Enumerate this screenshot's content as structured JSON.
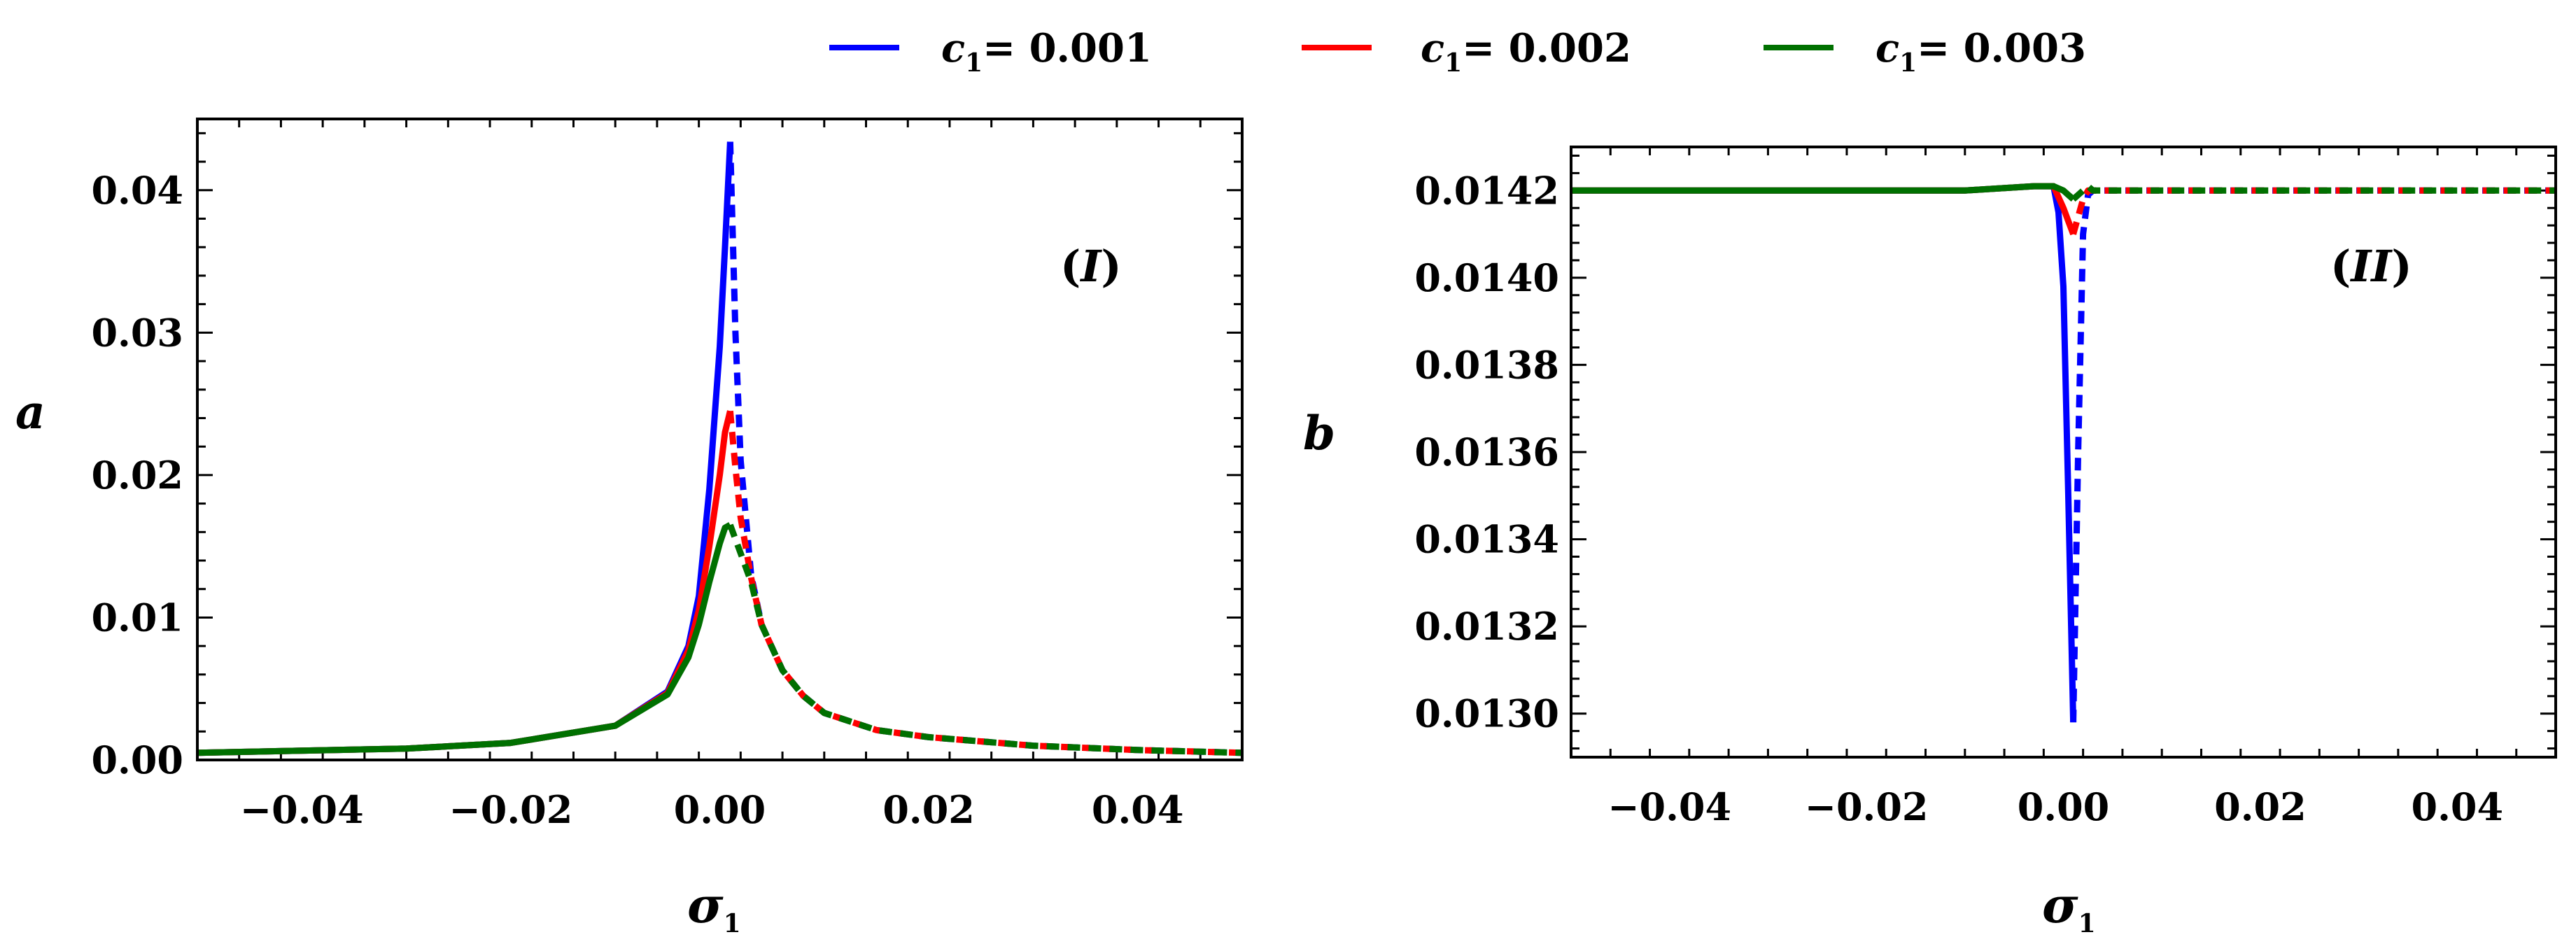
{
  "legend": [
    {
      "sym": "c",
      "sub": "1",
      "text": "= 0.001",
      "color": "#0000ff"
    },
    {
      "sym": "c",
      "sub": "1",
      "text": "= 0.002",
      "color": "#ff0000"
    },
    {
      "sym": "c",
      "sub": "1",
      "text": "= 0.003",
      "color": "#007000"
    }
  ],
  "chart_data": [
    {
      "type": "line",
      "panel_label": {
        "open": "(",
        "italic": "I",
        "close": ")"
      },
      "ylabel": "a",
      "xlabel": {
        "sym": "σ",
        "sub": "1"
      },
      "xlim": [
        -0.05,
        0.05
      ],
      "ylim": [
        0,
        0.045
      ],
      "xticks": [
        -0.04,
        -0.02,
        0.0,
        0.02,
        0.04
      ],
      "xtick_labels": [
        "−0.04",
        "−0.02",
        "0.00",
        "0.02",
        "0.04"
      ],
      "yticks": [
        0,
        0.01,
        0.02,
        0.03,
        0.04
      ],
      "ytick_labels": [
        "0.00",
        "0.01",
        "0.02",
        "0.03",
        "0.04"
      ],
      "series": [
        {
          "legend_index": 0,
          "color": "#0000ff",
          "solid": {
            "x": [
              -0.05,
              -0.03,
              -0.02,
              -0.01,
              -0.005,
              -0.003,
              -0.002,
              -0.001,
              0,
              0.0005,
              0.001
            ],
            "y": [
              0.0005,
              0.0008,
              0.0012,
              0.0024,
              0.0048,
              0.008,
              0.0115,
              0.019,
              0.029,
              0.036,
              0.0434
            ]
          },
          "dashed": {
            "x": [
              0.001,
              0.0015,
              0.002,
              0.003,
              0.004,
              0.006,
              0.008,
              0.01,
              0.015,
              0.02,
              0.03,
              0.04,
              0.05
            ],
            "y": [
              0.0434,
              0.03,
              0.021,
              0.013,
              0.0095,
              0.0063,
              0.0045,
              0.0033,
              0.0021,
              0.0016,
              0.001,
              0.0007,
              0.0005
            ]
          }
        },
        {
          "legend_index": 1,
          "color": "#ff0000",
          "solid": {
            "x": [
              -0.05,
              -0.03,
              -0.02,
              -0.01,
              -0.005,
              -0.003,
              -0.002,
              -0.001,
              0,
              0.0005,
              0.001
            ],
            "y": [
              0.0005,
              0.0008,
              0.0012,
              0.0024,
              0.0047,
              0.0077,
              0.0105,
              0.015,
              0.02,
              0.023,
              0.0245
            ]
          },
          "dashed": {
            "x": [
              0.001,
              0.0015,
              0.002,
              0.003,
              0.004,
              0.006,
              0.008,
              0.01,
              0.015,
              0.02,
              0.03,
              0.04,
              0.05
            ],
            "y": [
              0.0245,
              0.0205,
              0.017,
              0.0128,
              0.0095,
              0.0063,
              0.0045,
              0.0033,
              0.0021,
              0.0016,
              0.001,
              0.0007,
              0.0005
            ]
          }
        },
        {
          "legend_index": 2,
          "color": "#007000",
          "solid": {
            "x": [
              -0.05,
              -0.03,
              -0.02,
              -0.01,
              -0.005,
              -0.003,
              -0.002,
              -0.001,
              0,
              0.0005,
              0.001
            ],
            "y": [
              0.0005,
              0.0008,
              0.0012,
              0.0024,
              0.0046,
              0.0072,
              0.0095,
              0.0125,
              0.0152,
              0.0163,
              0.0165
            ]
          },
          "dashed": {
            "x": [
              0.001,
              0.0015,
              0.002,
              0.003,
              0.004,
              0.006,
              0.008,
              0.01,
              0.015,
              0.02,
              0.03,
              0.04,
              0.05
            ],
            "y": [
              0.0165,
              0.0155,
              0.0145,
              0.0125,
              0.0095,
              0.0063,
              0.0045,
              0.0033,
              0.0021,
              0.0016,
              0.001,
              0.0007,
              0.0005
            ]
          }
        }
      ]
    },
    {
      "type": "line",
      "panel_label": {
        "open": "(",
        "italic": "II",
        "close": ")"
      },
      "ylabel": "b",
      "xlabel": {
        "sym": "σ",
        "sub": "1"
      },
      "xlim": [
        -0.05,
        0.05
      ],
      "ylim": [
        0.0129,
        0.0143
      ],
      "xticks": [
        -0.04,
        -0.02,
        0.0,
        0.02,
        0.04
      ],
      "xtick_labels": [
        "−0.04",
        "−0.02",
        "0.00",
        "0.02",
        "0.04"
      ],
      "yticks": [
        0.013,
        0.0132,
        0.0134,
        0.0136,
        0.0138,
        0.014,
        0.0142
      ],
      "ytick_labels": [
        "0.0130",
        "0.0132",
        "0.0134",
        "0.0136",
        "0.0138",
        "0.0140",
        "0.0142"
      ],
      "series": [
        {
          "legend_index": 0,
          "color": "#0000ff",
          "solid": {
            "x": [
              -0.05,
              -0.01,
              -0.003,
              -0.001,
              -0.0005,
              0,
              0.0005,
              0.001
            ],
            "y": [
              0.0142,
              0.0142,
              0.01421,
              0.01421,
              0.01415,
              0.01398,
              0.0135,
              0.01298
            ]
          },
          "dashed": {
            "x": [
              0.001,
              0.0015,
              0.002,
              0.0025,
              0.003,
              0.004,
              0.05
            ],
            "y": [
              0.01298,
              0.0136,
              0.0141,
              0.01419,
              0.0142,
              0.0142,
              0.0142
            ]
          }
        },
        {
          "legend_index": 1,
          "color": "#ff0000",
          "solid": {
            "x": [
              -0.05,
              -0.01,
              -0.003,
              -0.001,
              0,
              0.0005,
              0.001
            ],
            "y": [
              0.0142,
              0.0142,
              0.01421,
              0.01421,
              0.01416,
              0.01413,
              0.0141
            ]
          },
          "dashed": {
            "x": [
              0.001,
              0.0015,
              0.002,
              0.0025,
              0.003,
              0.004,
              0.05
            ],
            "y": [
              0.0141,
              0.01414,
              0.01418,
              0.0142,
              0.0142,
              0.0142,
              0.0142
            ]
          }
        },
        {
          "legend_index": 2,
          "color": "#007000",
          "solid": {
            "x": [
              -0.05,
              -0.01,
              -0.003,
              -0.001,
              0,
              0.0005,
              0.001
            ],
            "y": [
              0.0142,
              0.0142,
              0.01421,
              0.01421,
              0.0142,
              0.01419,
              0.01418
            ]
          },
          "dashed": {
            "x": [
              0.001,
              0.0015,
              0.002,
              0.0025,
              0.003,
              0.004,
              0.05
            ],
            "y": [
              0.01418,
              0.01419,
              0.0142,
              0.01421,
              0.0142,
              0.0142,
              0.0142
            ]
          }
        }
      ]
    }
  ]
}
